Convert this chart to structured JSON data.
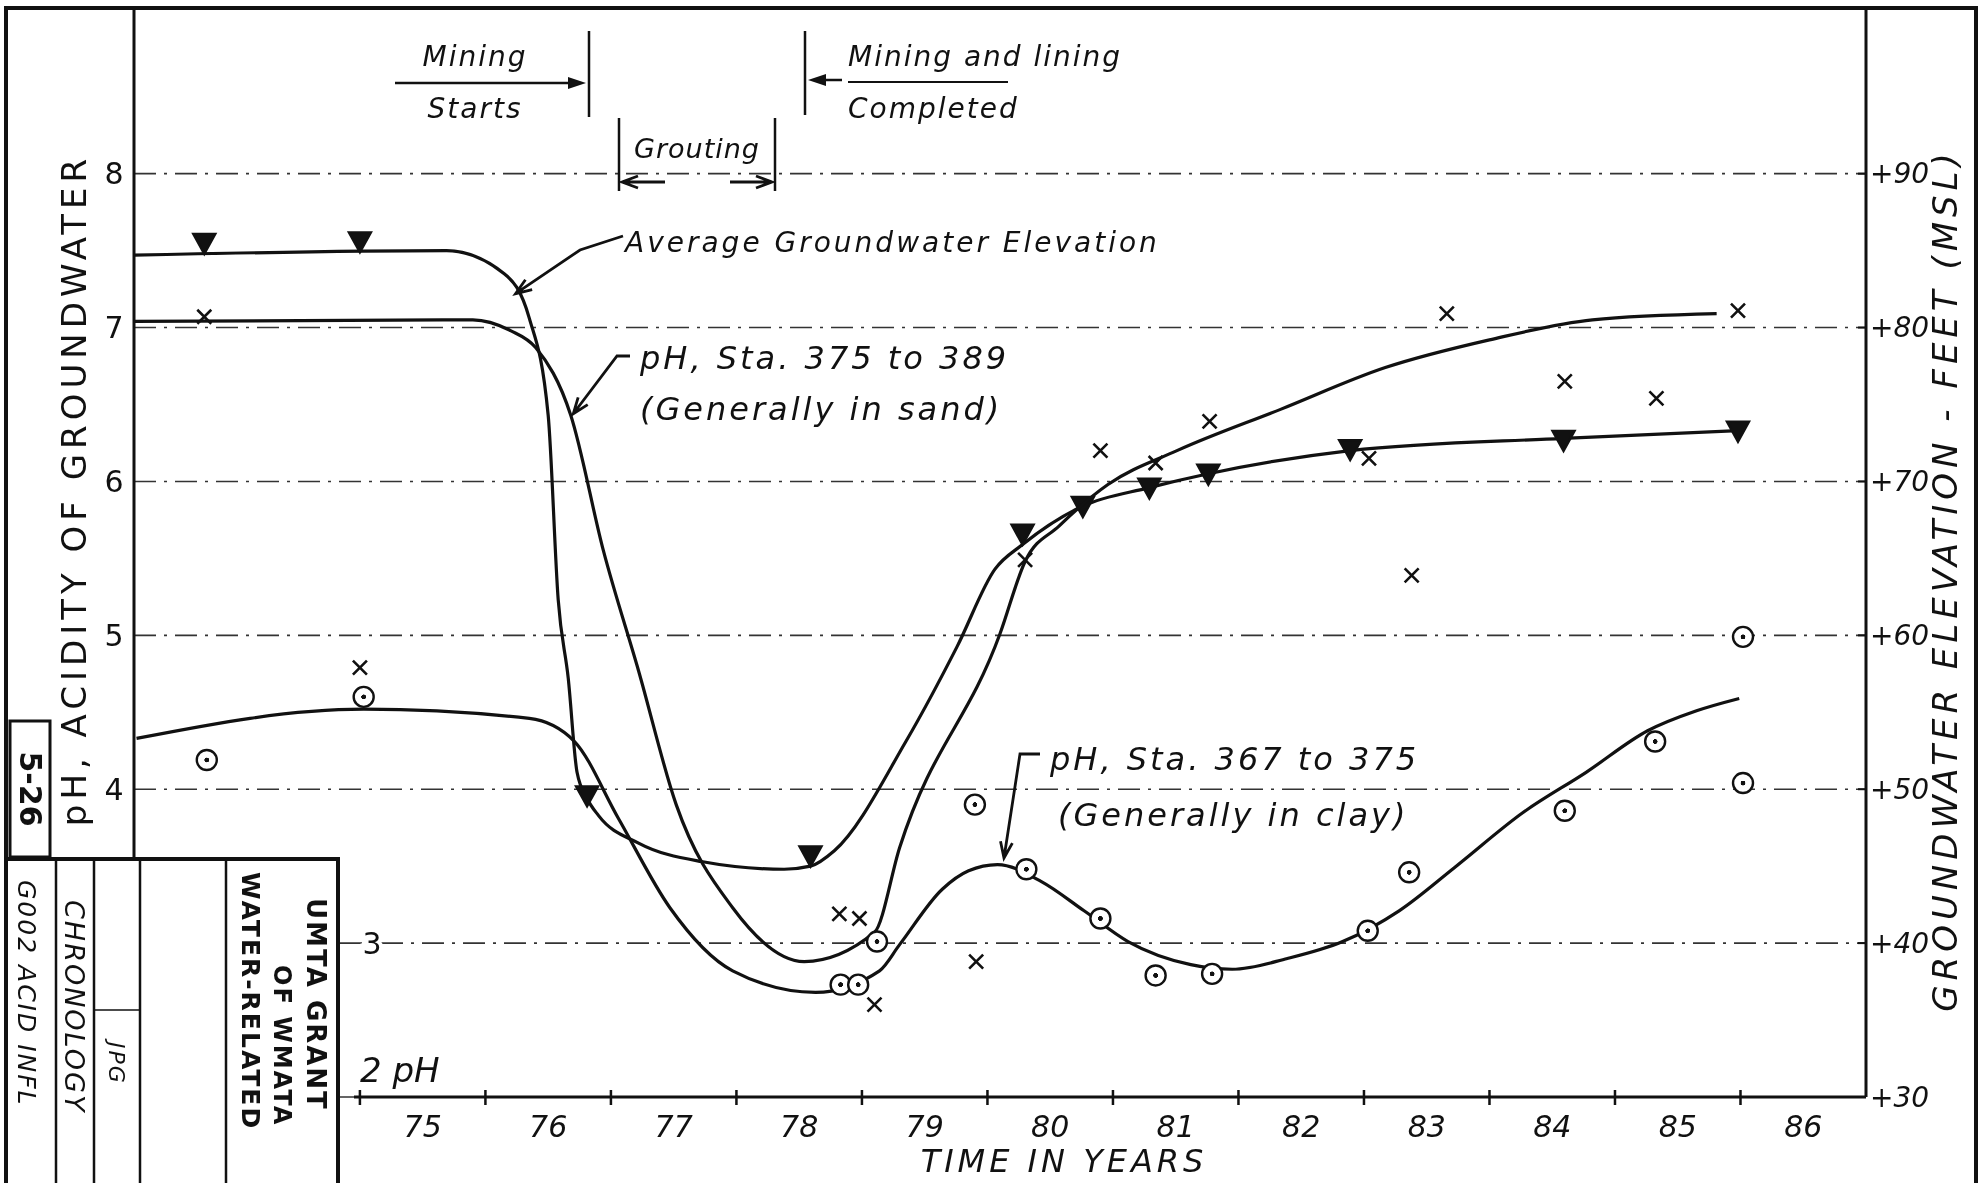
{
  "chart_data": {
    "type": "line",
    "xlabel": "TIME IN YEARS",
    "ylabel": "pH, ACIDITY OF GROUNDWATER",
    "y2label": "GROUNDWATER ELEVATION - FEET (MSL)",
    "xlim": [
      73.2,
      87
    ],
    "xticks": [
      {
        "value": 75,
        "label": null
      },
      {
        "value": 75.5,
        "label": "75"
      },
      {
        "value": 76,
        "label": null
      },
      {
        "value": 76.5,
        "label": "76"
      },
      {
        "value": 77,
        "label": null
      },
      {
        "value": 77.5,
        "label": "77"
      },
      {
        "value": 78,
        "label": null
      },
      {
        "value": 78.5,
        "label": "78"
      },
      {
        "value": 79,
        "label": null
      },
      {
        "value": 79.5,
        "label": "79"
      },
      {
        "value": 80,
        "label": null
      },
      {
        "value": 80.5,
        "label": "80"
      },
      {
        "value": 81,
        "label": null
      },
      {
        "value": 81.5,
        "label": "81"
      },
      {
        "value": 82,
        "label": null
      },
      {
        "value": 82.5,
        "label": "82"
      },
      {
        "value": 83,
        "label": null
      },
      {
        "value": 83.5,
        "label": "83"
      },
      {
        "value": 84,
        "label": null
      },
      {
        "value": 84.5,
        "label": "84"
      },
      {
        "value": 85,
        "label": null
      },
      {
        "value": 85.5,
        "label": "85"
      },
      {
        "value": 86,
        "label": null
      },
      {
        "value": 86.5,
        "label": "86"
      }
    ],
    "ylim": [
      2,
      9.07
    ],
    "yticks": [
      {
        "value": 2,
        "label": null
      },
      {
        "value": 3,
        "label": null
      },
      4,
      5,
      6,
      7,
      8
    ],
    "y2lim": [
      30,
      100.7
    ],
    "y2ticks": [
      {
        "value": 30,
        "label": "+30"
      },
      {
        "value": 40,
        "label": "+40"
      },
      {
        "value": 50,
        "label": "+50"
      },
      {
        "value": 60,
        "label": "+60"
      },
      {
        "value": 70,
        "label": "+70"
      },
      {
        "value": 80,
        "label": "+80"
      },
      {
        "value": 90,
        "label": "+90"
      }
    ],
    "grid": "y",
    "series": [
      {
        "axis": "y2",
        "color": "#111111",
        "x": [
          73.2,
          75.69,
          76.15,
          76.35,
          76.5,
          76.58,
          76.66,
          76.73,
          76.81,
          76.9,
          77.22,
          77.72,
          78.38,
          78.59,
          78.78,
          79.35,
          79.76,
          80.06,
          80.28,
          80.76,
          81.29,
          81.76,
          82.89,
          84.59,
          85.98
        ],
        "values": [
          84.7,
          85.0,
          83.5,
          80.6,
          74.3,
          62.3,
          57.2,
          51.1,
          49.4,
          48.3,
          46.5,
          45.3,
          44.8,
          45.0,
          46.0,
          53.1,
          59.3,
          64.3,
          65.9,
          68.4,
          69.6,
          70.5,
          72.0,
          72.8,
          73.3
        ]
      },
      {
        "type": "scatter",
        "axis": "y2",
        "color": "#111111",
        "marker": "triangle",
        "x": [
          73.76,
          75.0,
          76.81,
          78.59,
          80.28,
          80.76,
          81.29,
          81.76,
          82.89,
          84.59,
          85.98
        ],
        "values": [
          85.5,
          85.6,
          49.6,
          45.7,
          66.6,
          68.4,
          69.6,
          70.5,
          72.1,
          72.7,
          73.3
        ]
      },
      {
        "color": "#111111",
        "x": [
          73.2,
          75.9,
          76.2,
          76.4,
          76.68,
          76.94,
          77.22,
          77.52,
          77.97,
          78.54,
          79.1,
          79.3,
          80.1,
          80.3,
          80.57,
          80.96,
          81.51,
          82.34,
          83.17,
          84.0,
          84.82,
          85.81
        ],
        "values": [
          7.04,
          7.05,
          6.98,
          6.87,
          6.43,
          5.55,
          4.77,
          3.9,
          3.23,
          2.88,
          3.07,
          3.62,
          5.01,
          5.48,
          5.71,
          5.98,
          6.2,
          6.47,
          6.74,
          6.92,
          7.05,
          7.09
        ]
      },
      {
        "type": "scatter",
        "color": "#111111",
        "marker": "cross",
        "x": [
          73.76,
          75.0,
          78.82,
          78.98,
          79.1,
          79.91,
          80.3,
          80.9,
          81.34,
          81.77,
          83.04,
          83.38,
          83.66,
          84.6,
          85.33,
          85.98
        ],
        "values": [
          7.07,
          4.79,
          3.19,
          3.16,
          2.6,
          2.88,
          5.49,
          6.2,
          6.12,
          6.39,
          6.15,
          5.39,
          7.09,
          6.65,
          6.54,
          7.11
        ]
      },
      {
        "color": "#111111",
        "x": [
          73.22,
          75.03,
          76.35,
          76.71,
          77.06,
          77.47,
          77.97,
          78.63,
          79.14,
          79.3,
          79.64,
          79.85,
          80.08,
          80.43,
          80.77,
          81.12,
          81.62,
          81.95,
          82.39,
          82.83,
          83.28,
          83.72,
          84.27,
          84.77,
          85.26,
          85.65,
          85.99
        ],
        "values": [
          4.33,
          4.52,
          4.46,
          4.31,
          3.81,
          3.23,
          2.82,
          2.68,
          2.82,
          2.99,
          3.35,
          3.47,
          3.51,
          3.4,
          3.21,
          3.01,
          2.86,
          2.83,
          2.9,
          3.01,
          3.21,
          3.49,
          3.85,
          4.11,
          4.38,
          4.51,
          4.59
        ]
      },
      {
        "type": "scatter",
        "color": "#111111",
        "marker": "circle",
        "x": [
          73.78,
          75.03,
          78.83,
          78.97,
          79.12,
          79.9,
          80.31,
          80.9,
          81.34,
          81.79,
          83.03,
          83.36,
          84.6,
          85.32,
          86.02,
          86.02
        ],
        "values": [
          4.19,
          4.6,
          2.73,
          2.73,
          3.01,
          3.9,
          3.48,
          3.16,
          2.79,
          2.8,
          3.08,
          3.46,
          3.86,
          4.31,
          4.99,
          4.04
        ]
      }
    ],
    "annotations": [
      "Mining\nStarts",
      "Grouting",
      "Mining and lining\nCompleted",
      {
        "text": "Average Groundwater Elevation",
        "x": 76.24,
        "y": 7.22
      },
      {
        "text": "pH, Sta. 375 to 389\n(Generally in sand)",
        "x": 76.7,
        "y": 6.44
      },
      "pH, Sta. 367 to 375\n(Generally in clay)",
      "2 pH",
      "5-26",
      "UMTA GRANT",
      "OF WMATA",
      "WATER-RELATED",
      "CHRONOLOGY",
      "G002 ACID INFL",
      "JPG",
      "3"
    ]
  }
}
